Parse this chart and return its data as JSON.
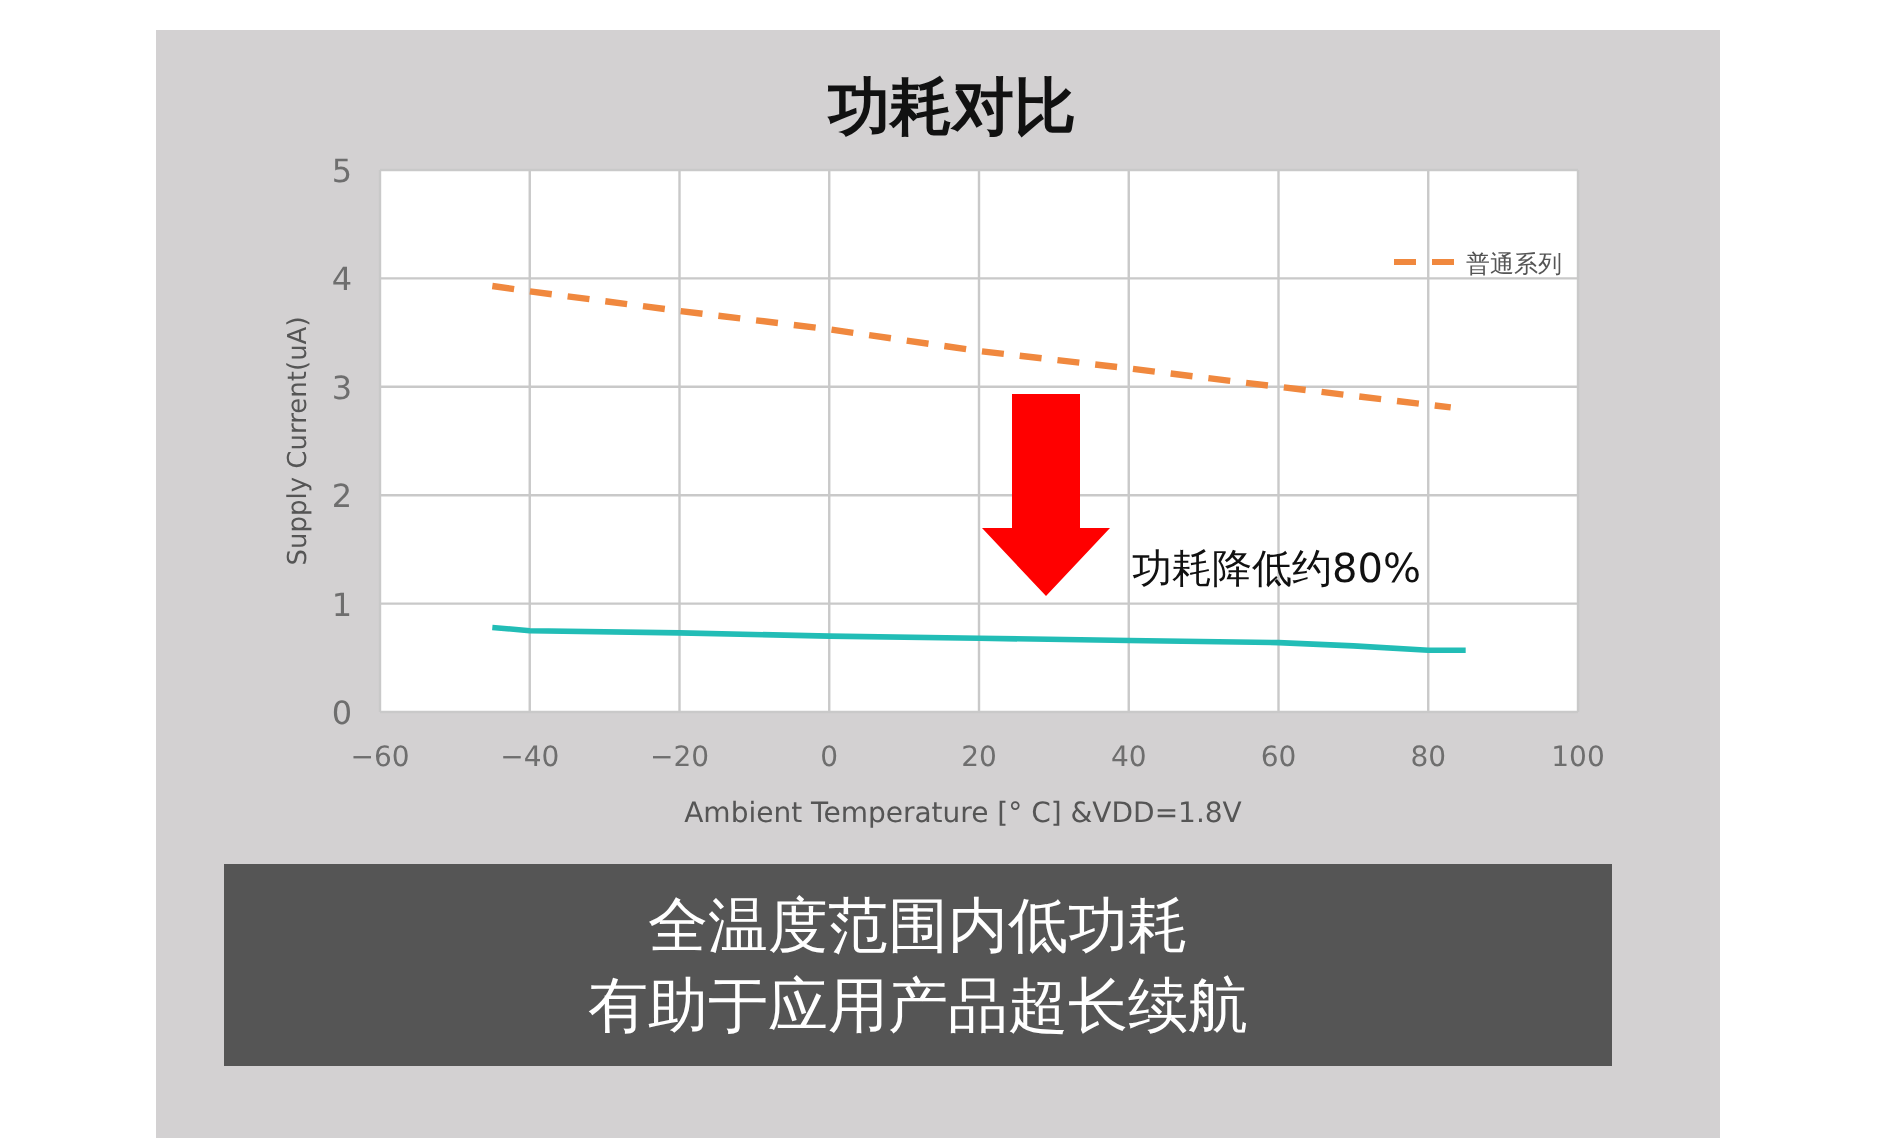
{
  "chart_data": {
    "type": "line",
    "title": "功耗对比",
    "xlabel": "Ambient Temperature [° C] &VDD=1.8V",
    "ylabel": "Supply Current(uA)",
    "series": [
      {
        "color": "#22bdb6",
        "line_style": "solid",
        "x": [
          -45,
          -40,
          -20,
          0,
          20,
          40,
          60,
          70,
          80,
          85
        ],
        "values": [
          0.78,
          0.75,
          0.73,
          0.7,
          0.68,
          0.66,
          0.64,
          0.61,
          0.57,
          0.57
        ]
      },
      {
        "name": "普通系列",
        "color": "#f0883e",
        "line_style": "dashed",
        "x": [
          -45,
          -40,
          -20,
          0,
          20,
          40,
          60,
          83
        ],
        "values": [
          3.93,
          3.88,
          3.7,
          3.53,
          3.33,
          3.17,
          3.0,
          2.81
        ]
      }
    ],
    "xlim": [
      -60,
      100
    ],
    "ylim": [
      0,
      5
    ],
    "xticks": [
      -60,
      -40,
      -20,
      0,
      20,
      40,
      60,
      80,
      100
    ],
    "yticks": [
      0,
      1,
      2,
      3,
      4,
      5
    ],
    "grid": true,
    "legend": "top right",
    "annotations": [
      "功耗降低约80%",
      "全温度范围内低功耗",
      "有助于应用产品超长续航"
    ]
  }
}
